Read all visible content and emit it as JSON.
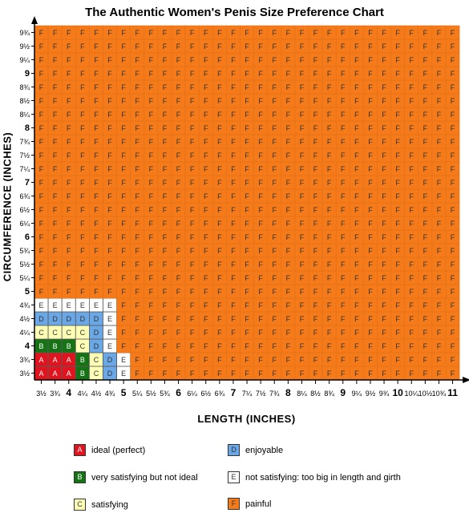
{
  "chart_data": {
    "type": "heatmap",
    "title": "The Authentic Women's Penis Size Preference Chart",
    "xlabel": "LENGTH  (INCHES)",
    "ylabel": "CIRCUMFERENCE (INCHES)",
    "x_ticks": [
      "3½",
      "3¾",
      "4",
      "4¼",
      "4½",
      "4¾",
      "5",
      "5¼",
      "5½",
      "5¾",
      "6",
      "6¼",
      "6½",
      "6¾",
      "7",
      "7¼",
      "7½",
      "7¾",
      "8",
      "8¼",
      "8½",
      "8¾",
      "9",
      "9¼",
      "9½",
      "9¾",
      "10",
      "10¼",
      "10½",
      "10¾",
      "11"
    ],
    "y_ticks": [
      "3½",
      "3¾",
      "4",
      "4¼",
      "4½",
      "4¾",
      "5",
      "5¼",
      "5½",
      "5¾",
      "6",
      "6¼",
      "6½",
      "6¾",
      "7",
      "7¼",
      "7½",
      "7¾",
      "8",
      "8¼",
      "8½",
      "8¾",
      "9",
      "9¼",
      "9½",
      "9¾"
    ],
    "cells_bottom_to_top": [
      "AAABCDE",
      "AAABCDE",
      "BBBCDE",
      "CCCCDE",
      "DDDDDE",
      "EEEEEE"
    ],
    "default_category": "F",
    "colors": {
      "A": "#e0141e",
      "B": "#157315",
      "C": "#ffffb5",
      "D": "#6aa7e6",
      "E": "#ffffff",
      "F": "#f47a1a"
    },
    "legend": [
      {
        "key": "A",
        "label": "ideal (perfect)"
      },
      {
        "key": "D",
        "label": "enjoyable"
      },
      {
        "key": "B",
        "label": "very satisfying but not ideal"
      },
      {
        "key": "E",
        "label": "not satisfying: too big in length and girth"
      },
      {
        "key": "C",
        "label": "satisfying"
      },
      {
        "key": "F",
        "label": "painful"
      }
    ]
  }
}
